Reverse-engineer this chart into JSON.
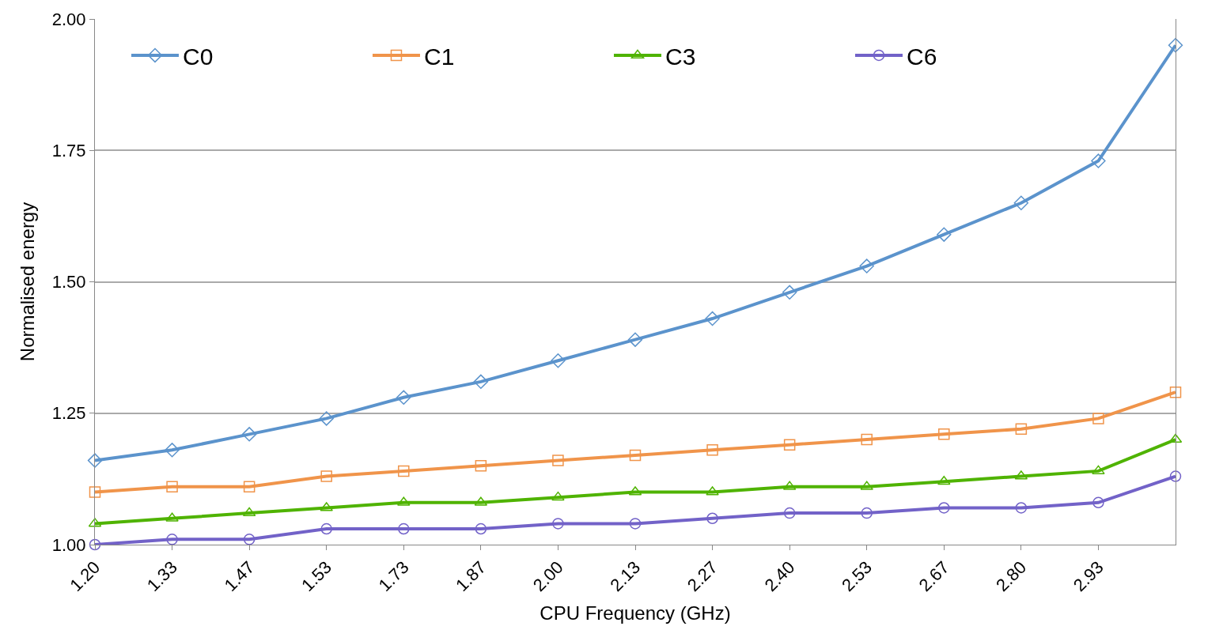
{
  "chart_data": {
    "type": "line",
    "xlabel": "CPU Frequency (GHz)",
    "ylabel": "Normalised energy",
    "categories": [
      "1.20",
      "1.33",
      "1.47",
      "1.53",
      "1.73",
      "1.87",
      "2.00",
      "2.13",
      "2.27",
      "2.40",
      "2.53",
      "2.67",
      "2.80",
      "2.93",
      null
    ],
    "series": [
      {
        "name": "C0",
        "color": "#5b93cc",
        "marker": "diamond",
        "values": [
          1.16,
          1.18,
          1.21,
          1.24,
          1.28,
          1.31,
          1.35,
          1.39,
          1.43,
          1.48,
          1.53,
          1.59,
          1.65,
          1.73,
          1.95
        ]
      },
      {
        "name": "C1",
        "color": "#f0944a",
        "marker": "square",
        "values": [
          1.1,
          1.11,
          1.11,
          1.13,
          1.14,
          1.15,
          1.16,
          1.17,
          1.18,
          1.19,
          1.2,
          1.21,
          1.22,
          1.24,
          1.29
        ]
      },
      {
        "name": "C3",
        "color": "#4fb300",
        "marker": "triangle",
        "values": [
          1.04,
          1.05,
          1.06,
          1.07,
          1.08,
          1.08,
          1.09,
          1.1,
          1.1,
          1.11,
          1.11,
          1.12,
          1.13,
          1.14,
          1.2
        ]
      },
      {
        "name": "C6",
        "color": "#7262c8",
        "marker": "circle",
        "values": [
          1.0,
          1.01,
          1.01,
          1.03,
          1.03,
          1.03,
          1.04,
          1.04,
          1.05,
          1.06,
          1.06,
          1.07,
          1.07,
          1.08,
          1.13
        ]
      }
    ],
    "ylim": [
      1.0,
      2.0
    ],
    "yticks": [
      {
        "value": 1.0,
        "label": "1.00"
      },
      {
        "value": 1.25,
        "label": "1.25"
      },
      {
        "value": 1.5,
        "label": "1.50"
      },
      {
        "value": 1.75,
        "label": "1.75"
      },
      {
        "value": 2.0,
        "label": "2.00"
      }
    ],
    "grid": "y",
    "legend": "top left",
    "line_style": "solid"
  }
}
